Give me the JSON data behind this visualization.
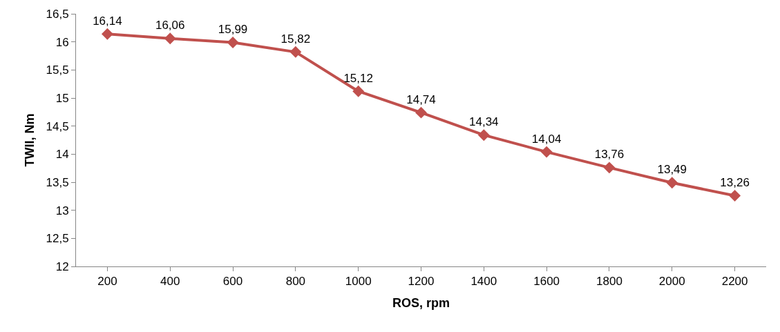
{
  "chart_data": {
    "type": "line",
    "xlabel": "ROS, rpm",
    "ylabel": "TWII, Nm",
    "categories": [
      "200",
      "400",
      "600",
      "800",
      "1000",
      "1200",
      "1400",
      "1600",
      "1800",
      "2000",
      "2200"
    ],
    "series": [
      {
        "color": "#c0504d",
        "values": [
          16.14,
          16.06,
          15.99,
          15.82,
          15.12,
          14.74,
          14.34,
          14.04,
          13.76,
          13.49,
          13.26
        ],
        "value_labels": [
          "16,14",
          "16,06",
          "15,99",
          "15,82",
          "15,12",
          "14,74",
          "14,34",
          "14,04",
          "13,76",
          "13,49",
          "13,26"
        ]
      }
    ],
    "ylim": [
      12,
      16.5
    ],
    "yticks": [
      {
        "value": 12,
        "label": "12"
      },
      {
        "value": 12.5,
        "label": "12,5"
      },
      {
        "value": 13,
        "label": "13"
      },
      {
        "value": 13.5,
        "label": "13,5"
      },
      {
        "value": 14,
        "label": "14"
      },
      {
        "value": 14.5,
        "label": "14,5"
      },
      {
        "value": 15,
        "label": "15"
      },
      {
        "value": 15.5,
        "label": "15,5"
      },
      {
        "value": 16,
        "label": "16"
      },
      {
        "value": 16.5,
        "label": "16,5"
      }
    ],
    "grid": false,
    "marker": "diamond",
    "line_style": "solid"
  }
}
